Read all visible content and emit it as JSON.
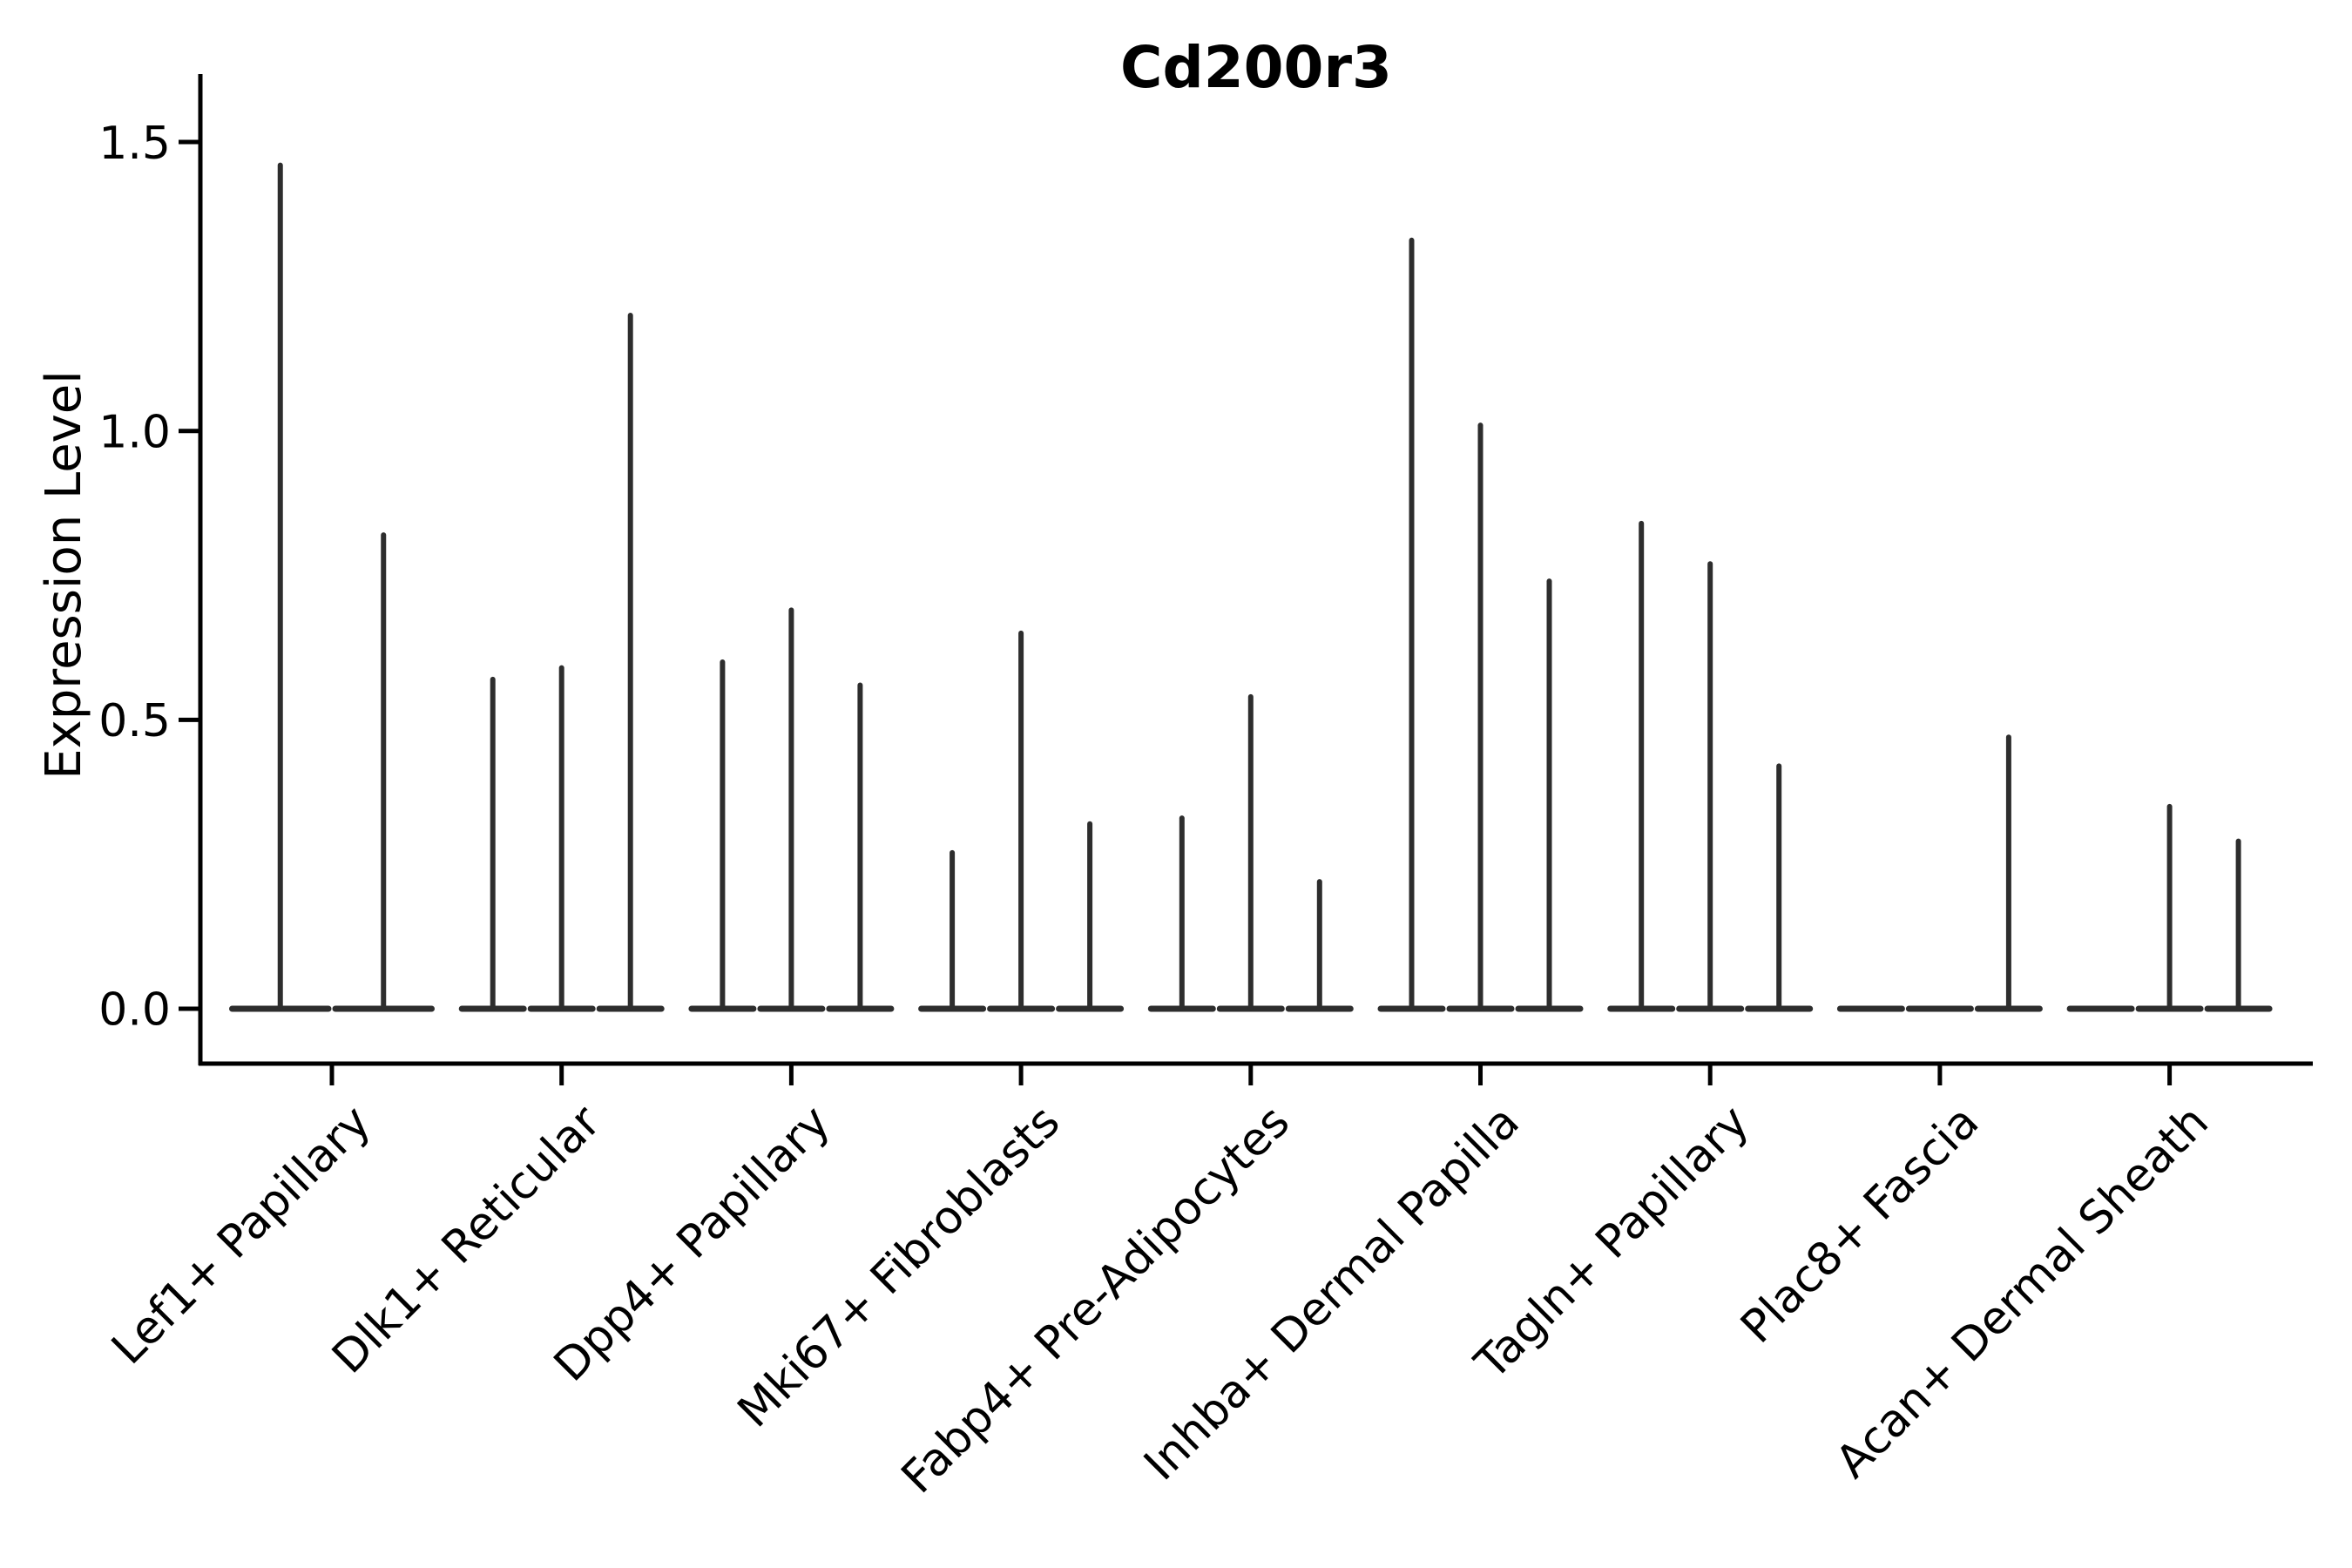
{
  "chart_data": {
    "type": "violin",
    "title": "Cd200r3",
    "ylabel": "Expression Level",
    "xlabel": "",
    "grid": false,
    "x_tick_rotation_deg": 45,
    "ytick_labels": [
      "0.0",
      "0.5",
      "1.0",
      "1.5"
    ],
    "ytick_values": [
      0.0,
      0.5,
      1.0,
      1.5
    ],
    "ylim": [
      0,
      1.62
    ],
    "categories": [
      "Lef1+ Papillary",
      "Dlk1+ Reticular",
      "Dpp4+ Papillary",
      "Mki67+ Fibroblasts",
      "Fabp4+ Pre-Adipocytes",
      "Inhba+ Dermal Papilla",
      "Tagln+ Papillary",
      "Plac8+ Fascia",
      "Acan+ Dermal Sheath"
    ],
    "groups": [
      {
        "category": "Lef1+ Papillary",
        "violin_max_values": [
          1.46,
          0.82
        ]
      },
      {
        "category": "Dlk1+ Reticular",
        "violin_max_values": [
          0.57,
          0.59,
          1.2
        ]
      },
      {
        "category": "Dpp4+ Papillary",
        "violin_max_values": [
          0.6,
          0.69,
          0.56
        ]
      },
      {
        "category": "Mki67+ Fibroblasts",
        "violin_max_values": [
          0.27,
          0.65,
          0.32
        ]
      },
      {
        "category": "Fabp4+ Pre-Adipocytes",
        "violin_max_values": [
          0.33,
          0.54,
          0.22
        ]
      },
      {
        "category": "Inhba+ Dermal Papilla",
        "violin_max_values": [
          1.33,
          1.01,
          0.74
        ]
      },
      {
        "category": "Tagln+ Papillary",
        "violin_max_values": [
          0.84,
          0.77,
          0.42
        ]
      },
      {
        "category": "Plac8+ Fascia",
        "violin_max_values": [
          0.0,
          0.0,
          0.47
        ]
      },
      {
        "category": "Acan+ Dermal Sheath",
        "violin_max_values": [
          0.0,
          0.35,
          0.29
        ]
      }
    ],
    "colors": {
      "violin": "#2d2d2d",
      "axis": "#000000",
      "text": "#000000",
      "background": "#ffffff"
    }
  }
}
